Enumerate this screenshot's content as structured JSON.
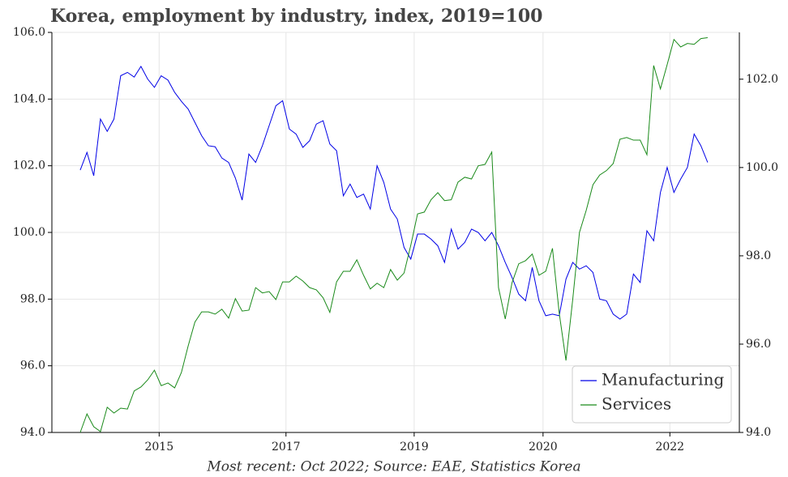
{
  "chart_data": {
    "type": "line",
    "title": "Korea, employment by industry, index, 2019=100",
    "footnote": "Most recent: Oct 2022; Source: EAE, Statistics Korea",
    "categories": [
      null,
      null,
      null,
      null,
      null,
      null,
      null,
      null,
      null,
      null,
      null,
      null,
      null,
      null,
      null,
      null,
      null,
      null,
      null,
      null,
      null,
      null,
      null,
      null,
      null,
      null,
      null,
      null,
      null,
      null,
      null,
      null,
      null,
      null,
      null,
      null,
      null,
      null,
      null,
      null,
      null,
      null,
      null,
      null,
      null,
      null,
      null,
      null,
      null,
      null,
      null,
      null,
      null,
      null,
      null,
      null,
      null,
      null,
      null,
      null,
      null,
      null,
      null,
      null,
      null,
      null,
      null,
      null,
      null,
      null,
      null,
      null,
      null,
      null,
      null,
      null,
      null,
      null,
      null,
      null,
      null,
      null,
      null,
      null,
      null,
      null,
      null,
      null,
      null,
      null,
      null,
      null,
      null,
      null
    ],
    "series": [
      {
        "name": "Manufacturing",
        "color": "#0000e6",
        "axis": "y",
        "values": [
          101.87,
          102.4,
          101.7,
          103.4,
          103.03,
          103.4,
          104.7,
          104.8,
          104.66,
          104.98,
          104.6,
          104.35,
          104.7,
          104.57,
          104.2,
          103.93,
          103.7,
          103.3,
          102.9,
          102.6,
          102.57,
          102.23,
          102.1,
          101.63,
          100.97,
          102.35,
          102.1,
          102.6,
          103.2,
          103.8,
          103.95,
          103.1,
          102.95,
          102.55,
          102.75,
          103.25,
          103.35,
          102.65,
          102.45,
          101.1,
          101.45,
          101.05,
          101.15,
          100.7,
          102.0,
          101.5,
          100.7,
          100.4,
          99.55,
          99.2,
          99.95,
          99.95,
          99.8,
          99.6,
          99.1,
          100.1,
          99.5,
          99.7,
          100.1,
          100.0,
          99.75,
          100.0,
          99.6,
          99.1,
          98.65,
          98.15,
          97.95,
          98.95,
          97.95,
          97.5,
          97.55,
          97.5,
          98.6,
          99.1,
          98.9,
          99.0,
          98.8,
          98.0,
          97.95,
          97.55,
          97.4,
          97.55,
          98.75,
          98.5,
          100.05,
          99.75,
          101.2,
          101.95,
          101.2,
          101.6,
          101.95,
          102.95,
          102.6,
          102.1
        ]
      },
      {
        "name": "Services",
        "color": "#1a8a1a",
        "axis": "y2",
        "values": [
          94.0,
          94.42,
          94.13,
          94.02,
          94.57,
          94.44,
          94.55,
          94.53,
          94.94,
          95.03,
          95.19,
          95.41,
          95.06,
          95.12,
          95.01,
          95.36,
          95.96,
          96.5,
          96.73,
          96.73,
          96.68,
          96.79,
          96.59,
          97.03,
          96.75,
          96.77,
          97.28,
          97.16,
          97.19,
          97.01,
          97.41,
          97.41,
          97.54,
          97.43,
          97.28,
          97.23,
          97.05,
          96.72,
          97.41,
          97.65,
          97.65,
          97.91,
          97.56,
          97.25,
          97.38,
          97.28,
          97.69,
          97.45,
          97.61,
          98.24,
          98.95,
          98.99,
          99.27,
          99.43,
          99.25,
          99.27,
          99.67,
          99.78,
          99.74,
          100.04,
          100.07,
          100.35,
          97.28,
          96.57,
          97.39,
          97.82,
          97.89,
          98.04,
          97.56,
          97.65,
          98.17,
          96.7,
          95.63,
          97.01,
          98.53,
          99.03,
          99.61,
          99.83,
          99.93,
          100.09,
          100.64,
          100.68,
          100.62,
          100.62,
          100.29,
          102.31,
          101.78,
          102.33,
          102.9,
          102.73,
          102.81,
          102.79,
          102.92,
          102.94
        ]
      }
    ],
    "xlim": [
      -4.2,
      97.7
    ],
    "xticks": [
      {
        "value": 11.7,
        "label": "2015"
      },
      {
        "value": 30.5,
        "label": "2017"
      },
      {
        "value": 49.5,
        "label": "2019"
      },
      {
        "value": 68.6,
        "label": "2020"
      },
      {
        "value": 87.4,
        "label": "2022"
      }
    ],
    "ylim": [
      94,
      106
    ],
    "yticks": [
      {
        "value": 94,
        "label": "94.0"
      },
      {
        "value": 96,
        "label": "96.0"
      },
      {
        "value": 98,
        "label": "98.0"
      },
      {
        "value": 100,
        "label": "100.0"
      },
      {
        "value": 102,
        "label": "102.0"
      },
      {
        "value": 104,
        "label": "104.0"
      },
      {
        "value": 106,
        "label": "106.0"
      }
    ],
    "y2lim": [
      94,
      103.06
    ],
    "y2ticks": [
      {
        "value": 94,
        "label": "94.0"
      },
      {
        "value": 96,
        "label": "96.0"
      },
      {
        "value": 98,
        "label": "98.0"
      },
      {
        "value": 100,
        "label": "100.0"
      },
      {
        "value": 102,
        "label": "102.0"
      }
    ],
    "grid": true,
    "legend": "lower right"
  }
}
